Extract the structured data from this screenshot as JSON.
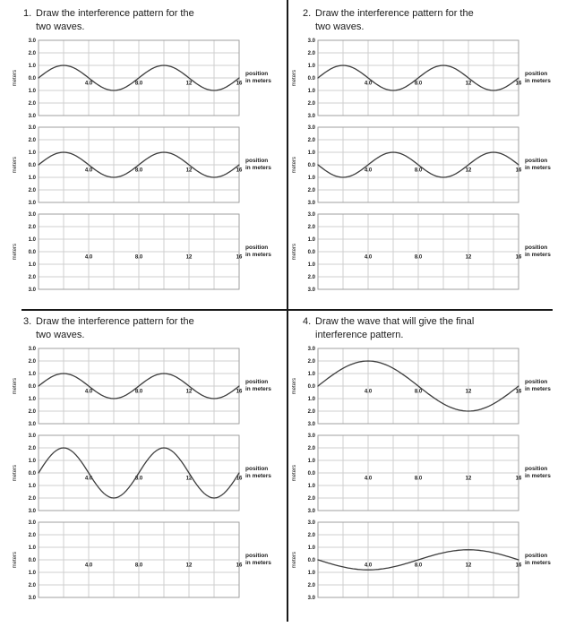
{
  "style": {
    "background": "#ffffff",
    "divider_color": "#1a1a1a",
    "grid_color": "#cfcfcf",
    "plot_border_color": "#9a9a9a",
    "wave_color": "#3d3d3d",
    "text_color": "#1a1a1a"
  },
  "axes": {
    "y_title": "meters",
    "x_title_line1": "position",
    "x_title_line2": "in meters",
    "y_ticks": [
      "3.0",
      "2.0",
      "1.0",
      "0.0",
      "1.0",
      "2.0",
      "3.0"
    ],
    "x_ticks": [
      {
        "label": "4.0",
        "pos": 4
      },
      {
        "label": "8.0",
        "pos": 8
      },
      {
        "label": "12",
        "pos": 12
      },
      {
        "label": "16",
        "pos": 16
      }
    ],
    "x_range": [
      0,
      16
    ],
    "y_range": [
      -3,
      3
    ]
  },
  "quadrants": [
    {
      "number": "1.",
      "title_line1": "Draw the interference pattern for the",
      "title_line2": "two waves.",
      "graphs": [
        {
          "wave": {
            "amplitude": 1,
            "wavelength": 8,
            "phase_deg": 0
          }
        },
        {
          "wave": {
            "amplitude": 1,
            "wavelength": 8,
            "phase_deg": 0
          }
        },
        {
          "wave": null
        }
      ]
    },
    {
      "number": "2.",
      "title_line1": "Draw the interference pattern for the",
      "title_line2": "two waves.",
      "graphs": [
        {
          "wave": {
            "amplitude": 1,
            "wavelength": 8,
            "phase_deg": 0
          }
        },
        {
          "wave": {
            "amplitude": 1,
            "wavelength": 8,
            "phase_deg": 180
          }
        },
        {
          "wave": null
        }
      ]
    },
    {
      "number": "3.",
      "title_line1": "Draw the interference pattern for the",
      "title_line2": "two waves.",
      "graphs": [
        {
          "wave": {
            "amplitude": 1,
            "wavelength": 8,
            "phase_deg": 0
          }
        },
        {
          "wave": {
            "amplitude": 2,
            "wavelength": 8,
            "phase_deg": 0
          }
        },
        {
          "wave": null
        }
      ]
    },
    {
      "number": "4.",
      "title_line1": "Draw the wave that will give the final",
      "title_line2": "interference pattern.",
      "graphs": [
        {
          "wave": {
            "amplitude": 2,
            "wavelength": 16,
            "phase_deg": 0
          }
        },
        {
          "wave": null
        },
        {
          "wave": {
            "amplitude": 0.8,
            "wavelength": 16,
            "phase_deg": 180
          }
        }
      ]
    }
  ],
  "chart_data": {
    "type": "line",
    "xlabel": "position in meters",
    "ylabel": "meters",
    "x_range": [
      0,
      16
    ],
    "y_range": [
      -3,
      3
    ],
    "x_gridline_spacing": 2,
    "y_gridline_spacing": 1,
    "x_tick_labels": [
      "4.0",
      "8.0",
      "12",
      "16"
    ],
    "y_tick_labels": [
      "3.0",
      "2.0",
      "1.0",
      "0.0",
      "1.0",
      "2.0",
      "3.0"
    ],
    "panels": [
      {
        "question": 1,
        "panel": 1,
        "blank": false,
        "amplitude_m": 1,
        "wavelength_m": 8,
        "inverted": false
      },
      {
        "question": 1,
        "panel": 2,
        "blank": false,
        "amplitude_m": 1,
        "wavelength_m": 8,
        "inverted": false
      },
      {
        "question": 1,
        "panel": 3,
        "blank": true
      },
      {
        "question": 2,
        "panel": 1,
        "blank": false,
        "amplitude_m": 1,
        "wavelength_m": 8,
        "inverted": false
      },
      {
        "question": 2,
        "panel": 2,
        "blank": false,
        "amplitude_m": 1,
        "wavelength_m": 8,
        "inverted": true
      },
      {
        "question": 2,
        "panel": 3,
        "blank": true
      },
      {
        "question": 3,
        "panel": 1,
        "blank": false,
        "amplitude_m": 1,
        "wavelength_m": 8,
        "inverted": false
      },
      {
        "question": 3,
        "panel": 2,
        "blank": false,
        "amplitude_m": 2,
        "wavelength_m": 8,
        "inverted": false
      },
      {
        "question": 3,
        "panel": 3,
        "blank": true
      },
      {
        "question": 4,
        "panel": 1,
        "blank": false,
        "amplitude_m": 2,
        "wavelength_m": 16,
        "inverted": false
      },
      {
        "question": 4,
        "panel": 2,
        "blank": true
      },
      {
        "question": 4,
        "panel": 3,
        "blank": false,
        "amplitude_m": 0.8,
        "wavelength_m": 16,
        "inverted": true
      }
    ]
  }
}
